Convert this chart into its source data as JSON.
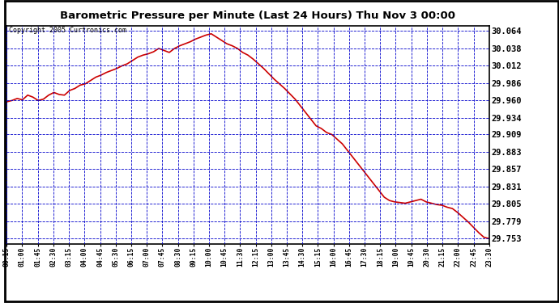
{
  "title": "Barometric Pressure per Minute (Last 24 Hours) Thu Nov 3 00:00",
  "copyright": "Copyright 2005 Curtronics.com",
  "background_color": "#ffffff",
  "plot_bg_color": "#ffffff",
  "outer_border_color": "#000000",
  "grid_color": "#0000cc",
  "line_color": "#cc0000",
  "line_width": 1.2,
  "yticks": [
    29.753,
    29.779,
    29.805,
    29.831,
    29.857,
    29.883,
    29.909,
    29.934,
    29.96,
    29.986,
    30.012,
    30.038,
    30.064
  ],
  "ylim": [
    29.745,
    30.072
  ],
  "xtick_labels": [
    "00:15",
    "01:00",
    "01:45",
    "02:30",
    "03:15",
    "04:00",
    "04:45",
    "05:30",
    "06:15",
    "07:00",
    "07:45",
    "08:30",
    "09:15",
    "10:00",
    "10:45",
    "11:30",
    "12:15",
    "13:00",
    "13:45",
    "14:30",
    "15:15",
    "16:00",
    "16:45",
    "17:30",
    "18:15",
    "19:00",
    "19:45",
    "20:30",
    "21:15",
    "22:00",
    "22:45",
    "23:30"
  ],
  "pressure_data": [
    29.958,
    29.96,
    29.963,
    29.961,
    29.968,
    29.965,
    29.96,
    29.962,
    29.968,
    29.972,
    29.969,
    29.968,
    29.975,
    29.978,
    29.983,
    29.985,
    29.99,
    29.995,
    29.998,
    30.002,
    30.005,
    30.008,
    30.012,
    30.015,
    30.02,
    30.025,
    30.028,
    30.03,
    30.033,
    30.038,
    30.035,
    30.032,
    30.038,
    30.042,
    30.045,
    30.048,
    30.052,
    30.055,
    30.058,
    30.06,
    30.055,
    30.05,
    30.045,
    30.042,
    30.038,
    30.032,
    30.028,
    30.022,
    30.015,
    30.008,
    30.0,
    29.992,
    29.985,
    29.978,
    29.97,
    29.962,
    29.952,
    29.942,
    29.932,
    29.922,
    29.918,
    29.912,
    29.909,
    29.902,
    29.895,
    29.885,
    29.875,
    29.865,
    29.855,
    29.845,
    29.835,
    29.825,
    29.815,
    29.81,
    29.808,
    29.807,
    29.806,
    29.808,
    29.81,
    29.812,
    29.808,
    29.806,
    29.804,
    29.803,
    29.8,
    29.798,
    29.792,
    29.785,
    29.778,
    29.77,
    29.762,
    29.755,
    29.753
  ]
}
